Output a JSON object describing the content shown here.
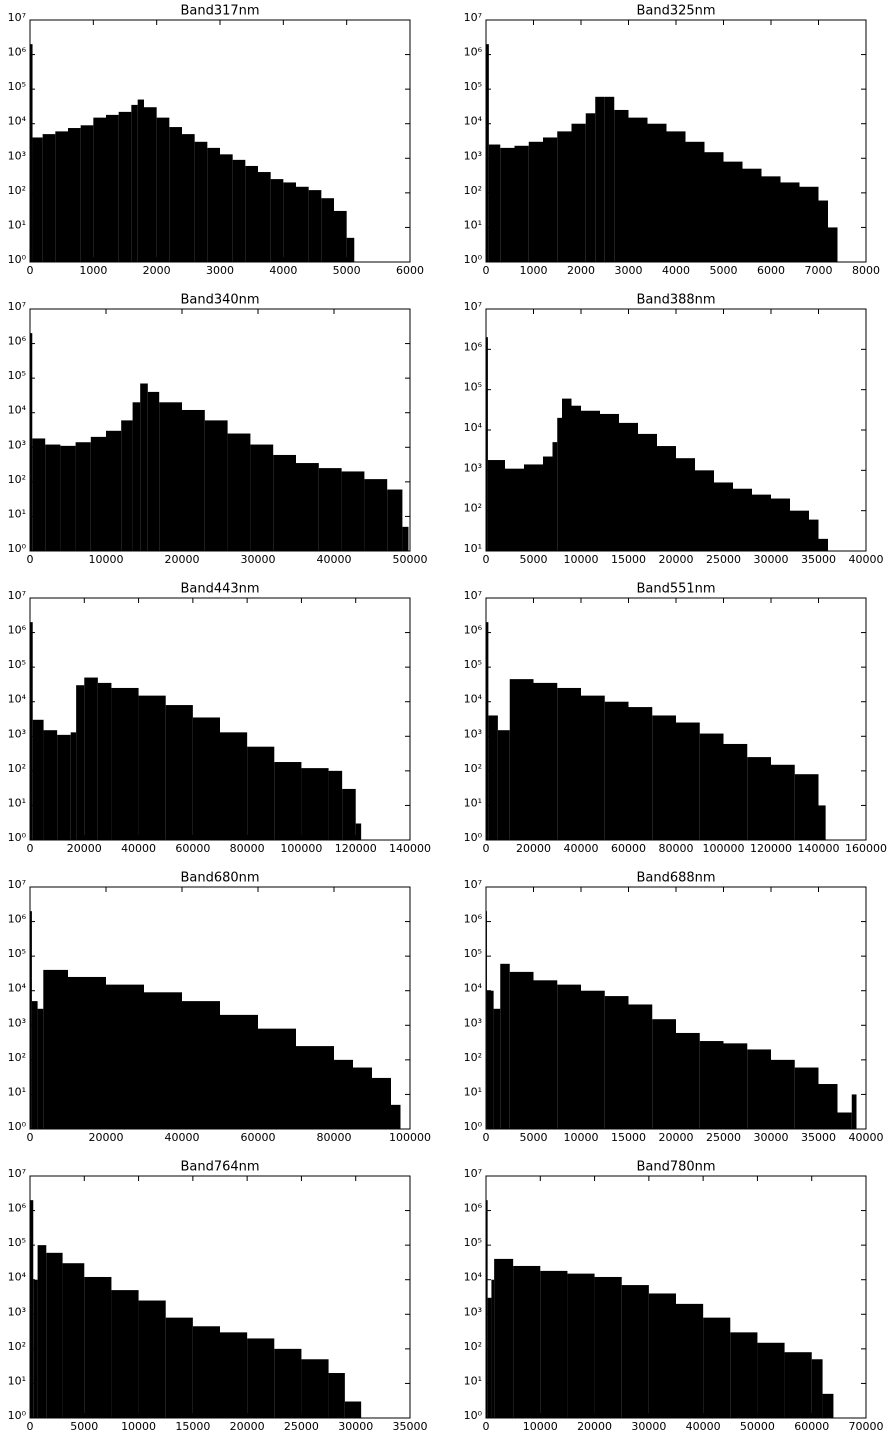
{
  "chart_data": [
    {
      "type": "histogram",
      "title": "Band317nm",
      "color": "#000000",
      "log_y": true,
      "bins": [
        0,
        40,
        200,
        400,
        600,
        800,
        1000,
        1200,
        1400,
        1600,
        1700,
        1800,
        2000,
        2200,
        2400,
        2600,
        2800,
        3000,
        3200,
        3400,
        3600,
        3800,
        4000,
        4200,
        4400,
        4600,
        4800,
        5000,
        5120
      ],
      "values": [
        2000000,
        4000,
        5000,
        6000,
        7500,
        9000,
        15000,
        18000,
        22000,
        35000,
        50000,
        30000,
        15000,
        8000,
        5000,
        3000,
        2000,
        1300,
        900,
        600,
        400,
        250,
        200,
        150,
        120,
        70,
        30,
        5
      ],
      "xlim": [
        0,
        6000
      ],
      "xticks": [
        0,
        1000,
        2000,
        3000,
        4000,
        5000,
        6000
      ],
      "ylim": [
        1,
        10000000
      ],
      "yticks": [
        {
          "value": 1,
          "label": "10⁰"
        },
        {
          "value": 10,
          "label": "10¹"
        },
        {
          "value": 100,
          "label": "10²"
        },
        {
          "value": 1000,
          "label": "10³"
        },
        {
          "value": 10000,
          "label": "10⁴"
        },
        {
          "value": 100000,
          "label": "10⁵"
        },
        {
          "value": 1000000,
          "label": "10⁶"
        },
        {
          "value": 10000000,
          "label": "10⁷"
        }
      ]
    },
    {
      "type": "histogram",
      "title": "Band325nm",
      "color": "#000000",
      "log_y": true,
      "bins": [
        0,
        60,
        300,
        600,
        900,
        1200,
        1500,
        1800,
        2100,
        2300,
        2500,
        2700,
        3000,
        3400,
        3800,
        4200,
        4600,
        5000,
        5400,
        5800,
        6200,
        6600,
        7000,
        7200,
        7400
      ],
      "values": [
        2000000,
        2500,
        2000,
        2300,
        3000,
        4000,
        6000,
        10000,
        20000,
        60000,
        60000,
        25000,
        15000,
        10000,
        6000,
        3000,
        1500,
        800,
        500,
        300,
        200,
        150,
        60,
        10
      ],
      "xlim": [
        0,
        8000
      ],
      "xticks": [
        0,
        1000,
        2000,
        3000,
        4000,
        5000,
        6000,
        7000,
        8000
      ],
      "ylim": [
        1,
        10000000
      ],
      "yticks": [
        {
          "value": 1,
          "label": "10⁰"
        },
        {
          "value": 10,
          "label": "10¹"
        },
        {
          "value": 100,
          "label": "10²"
        },
        {
          "value": 1000,
          "label": "10³"
        },
        {
          "value": 10000,
          "label": "10⁴"
        },
        {
          "value": 100000,
          "label": "10⁵"
        },
        {
          "value": 1000000,
          "label": "10⁶"
        },
        {
          "value": 10000000,
          "label": "10⁷"
        }
      ]
    },
    {
      "type": "histogram",
      "title": "Band340nm",
      "color": "#000000",
      "log_y": true,
      "bins": [
        0,
        300,
        2000,
        4000,
        6000,
        8000,
        10000,
        12000,
        13500,
        14500,
        15500,
        17000,
        20000,
        23000,
        26000,
        29000,
        32000,
        35000,
        38000,
        41000,
        44000,
        47000,
        49000,
        49800
      ],
      "values": [
        2000000,
        1800,
        1200,
        1100,
        1400,
        2000,
        3000,
        6000,
        20000,
        70000,
        40000,
        20000,
        12000,
        6000,
        2500,
        1200,
        600,
        350,
        250,
        200,
        120,
        60,
        5
      ],
      "xlim": [
        0,
        50000
      ],
      "xticks": [
        0,
        10000,
        20000,
        30000,
        40000,
        50000
      ],
      "ylim": [
        1,
        10000000
      ],
      "yticks": [
        {
          "value": 1,
          "label": "10⁰"
        },
        {
          "value": 10,
          "label": "10¹"
        },
        {
          "value": 100,
          "label": "10²"
        },
        {
          "value": 1000,
          "label": "10³"
        },
        {
          "value": 10000,
          "label": "10⁴"
        },
        {
          "value": 100000,
          "label": "10⁵"
        },
        {
          "value": 1000000,
          "label": "10⁶"
        },
        {
          "value": 10000000,
          "label": "10⁷"
        }
      ]
    },
    {
      "type": "histogram",
      "title": "Band388nm",
      "color": "#000000",
      "log_y": true,
      "bins": [
        0,
        200,
        2000,
        4000,
        6000,
        7000,
        7500,
        8000,
        9000,
        10000,
        12000,
        14000,
        16000,
        18000,
        20000,
        22000,
        24000,
        26000,
        28000,
        30000,
        32000,
        34000,
        35000,
        36000
      ],
      "values": [
        2000000,
        1800,
        1100,
        1400,
        2200,
        5000,
        20000,
        60000,
        40000,
        30000,
        25000,
        15000,
        8000,
        4000,
        2000,
        1000,
        500,
        350,
        250,
        200,
        100,
        60,
        20
      ],
      "xlim": [
        0,
        40000
      ],
      "xticks": [
        0,
        5000,
        10000,
        15000,
        20000,
        25000,
        30000,
        35000,
        40000
      ],
      "ylim": [
        10,
        10000000
      ],
      "yticks": [
        {
          "value": 10,
          "label": "10¹"
        },
        {
          "value": 100,
          "label": "10²"
        },
        {
          "value": 1000,
          "label": "10³"
        },
        {
          "value": 10000,
          "label": "10⁴"
        },
        {
          "value": 100000,
          "label": "10⁵"
        },
        {
          "value": 1000000,
          "label": "10⁶"
        },
        {
          "value": 10000000,
          "label": "10⁷"
        }
      ]
    },
    {
      "type": "histogram",
      "title": "Band443nm",
      "color": "#000000",
      "log_y": true,
      "bins": [
        0,
        1000,
        5000,
        10000,
        15000,
        17000,
        20000,
        25000,
        30000,
        40000,
        50000,
        60000,
        70000,
        80000,
        90000,
        100000,
        110000,
        115000,
        120000,
        122000
      ],
      "values": [
        2000000,
        3000,
        1500,
        1100,
        1300,
        30000,
        50000,
        35000,
        25000,
        15000,
        8000,
        3500,
        1300,
        500,
        180,
        120,
        100,
        30,
        3
      ],
      "xlim": [
        0,
        140000
      ],
      "xticks": [
        0,
        20000,
        40000,
        60000,
        80000,
        100000,
        120000,
        140000
      ],
      "ylim": [
        1,
        10000000
      ],
      "yticks": [
        {
          "value": 1,
          "label": "10⁰"
        },
        {
          "value": 10,
          "label": "10¹"
        },
        {
          "value": 100,
          "label": "10²"
        },
        {
          "value": 1000,
          "label": "10³"
        },
        {
          "value": 10000,
          "label": "10⁴"
        },
        {
          "value": 100000,
          "label": "10⁵"
        },
        {
          "value": 1000000,
          "label": "10⁶"
        },
        {
          "value": 10000000,
          "label": "10⁷"
        }
      ]
    },
    {
      "type": "histogram",
      "title": "Band551nm",
      "color": "#000000",
      "log_y": true,
      "bins": [
        0,
        1000,
        5000,
        8000,
        10000,
        20000,
        30000,
        40000,
        50000,
        60000,
        70000,
        80000,
        90000,
        100000,
        110000,
        120000,
        130000,
        140000,
        143000
      ],
      "values": [
        2000000,
        4000,
        1500,
        1500,
        45000,
        35000,
        25000,
        15000,
        10000,
        7000,
        4000,
        2500,
        1200,
        600,
        250,
        150,
        80,
        10
      ],
      "xlim": [
        0,
        160000
      ],
      "xticks": [
        0,
        20000,
        40000,
        60000,
        80000,
        100000,
        120000,
        140000,
        160000
      ],
      "ylim": [
        1,
        10000000
      ],
      "yticks": [
        {
          "value": 1,
          "label": "10⁰"
        },
        {
          "value": 10,
          "label": "10¹"
        },
        {
          "value": 100,
          "label": "10²"
        },
        {
          "value": 1000,
          "label": "10³"
        },
        {
          "value": 10000,
          "label": "10⁴"
        },
        {
          "value": 100000,
          "label": "10⁵"
        },
        {
          "value": 1000000,
          "label": "10⁶"
        },
        {
          "value": 10000000,
          "label": "10⁷"
        }
      ]
    },
    {
      "type": "histogram",
      "title": "Band680nm",
      "color": "#000000",
      "log_y": true,
      "bins": [
        0,
        500,
        2000,
        3500,
        10000,
        20000,
        30000,
        40000,
        50000,
        60000,
        70000,
        80000,
        85000,
        90000,
        95000,
        97500
      ],
      "values": [
        2000000,
        5000,
        3000,
        40000,
        25000,
        15000,
        9000,
        5000,
        2000,
        800,
        250,
        100,
        60,
        30,
        5
      ],
      "xlim": [
        0,
        100000
      ],
      "xticks": [
        0,
        20000,
        40000,
        60000,
        80000,
        100000
      ],
      "ylim": [
        1,
        10000000
      ],
      "yticks": [
        {
          "value": 1,
          "label": "10⁰"
        },
        {
          "value": 10,
          "label": "10¹"
        },
        {
          "value": 100,
          "label": "10²"
        },
        {
          "value": 1000,
          "label": "10³"
        },
        {
          "value": 10000,
          "label": "10⁴"
        },
        {
          "value": 100000,
          "label": "10⁵"
        },
        {
          "value": 1000000,
          "label": "10⁶"
        },
        {
          "value": 10000000,
          "label": "10⁷"
        }
      ]
    },
    {
      "type": "histogram",
      "title": "Band688nm",
      "color": "#000000",
      "log_y": true,
      "bins": [
        0,
        100,
        800,
        1500,
        2500,
        5000,
        7500,
        10000,
        12500,
        15000,
        17500,
        20000,
        22500,
        25000,
        27500,
        30000,
        32500,
        35000,
        37000,
        38500,
        39000
      ],
      "values": [
        2000000,
        10000,
        3000,
        60000,
        35000,
        20000,
        15000,
        10000,
        7000,
        4000,
        1500,
        600,
        350,
        300,
        200,
        100,
        60,
        20,
        3,
        10
      ],
      "xlim": [
        0,
        40000
      ],
      "xticks": [
        0,
        5000,
        10000,
        15000,
        20000,
        25000,
        30000,
        35000,
        40000
      ],
      "ylim": [
        1,
        10000000
      ],
      "yticks": [
        {
          "value": 1,
          "label": "10⁰"
        },
        {
          "value": 10,
          "label": "10¹"
        },
        {
          "value": 100,
          "label": "10²"
        },
        {
          "value": 1000,
          "label": "10³"
        },
        {
          "value": 10000,
          "label": "10⁴"
        },
        {
          "value": 100000,
          "label": "10⁵"
        },
        {
          "value": 1000000,
          "label": "10⁶"
        },
        {
          "value": 10000000,
          "label": "10⁷"
        }
      ]
    },
    {
      "type": "histogram",
      "title": "Band764nm",
      "color": "#000000",
      "log_y": true,
      "bins": [
        0,
        300,
        700,
        1500,
        3000,
        5000,
        7500,
        10000,
        12500,
        15000,
        17500,
        20000,
        22500,
        25000,
        27500,
        29000,
        30500
      ],
      "values": [
        2000000,
        10000,
        100000,
        60000,
        30000,
        12000,
        5000,
        2500,
        800,
        450,
        300,
        200,
        100,
        50,
        20,
        3
      ],
      "xlim": [
        0,
        35000
      ],
      "xticks": [
        0,
        5000,
        10000,
        15000,
        20000,
        25000,
        30000,
        35000
      ],
      "ylim": [
        1,
        10000000
      ],
      "yticks": [
        {
          "value": 1,
          "label": "10⁰"
        },
        {
          "value": 10,
          "label": "10¹"
        },
        {
          "value": 100,
          "label": "10²"
        },
        {
          "value": 1000,
          "label": "10³"
        },
        {
          "value": 10000,
          "label": "10⁴"
        },
        {
          "value": 100000,
          "label": "10⁵"
        },
        {
          "value": 1000000,
          "label": "10⁶"
        },
        {
          "value": 10000000,
          "label": "10⁷"
        }
      ]
    },
    {
      "type": "histogram",
      "title": "Band780nm",
      "color": "#000000",
      "log_y": true,
      "bins": [
        0,
        300,
        1000,
        1500,
        5000,
        10000,
        15000,
        20000,
        25000,
        30000,
        35000,
        40000,
        45000,
        50000,
        55000,
        60000,
        62000,
        64000
      ],
      "values": [
        2000000,
        3000,
        10000,
        40000,
        25000,
        18000,
        15000,
        12000,
        7000,
        4000,
        2000,
        800,
        300,
        150,
        80,
        50,
        5
      ],
      "xlim": [
        0,
        70000
      ],
      "xticks": [
        0,
        10000,
        20000,
        30000,
        40000,
        50000,
        60000,
        70000
      ],
      "ylim": [
        1,
        10000000
      ],
      "yticks": [
        {
          "value": 1,
          "label": "10⁰"
        },
        {
          "value": 10,
          "label": "10¹"
        },
        {
          "value": 100,
          "label": "10²"
        },
        {
          "value": 1000,
          "label": "10³"
        },
        {
          "value": 10000,
          "label": "10⁴"
        },
        {
          "value": 100000,
          "label": "10⁵"
        },
        {
          "value": 1000000,
          "label": "10⁶"
        },
        {
          "value": 10000000,
          "label": "10⁷"
        }
      ]
    }
  ]
}
